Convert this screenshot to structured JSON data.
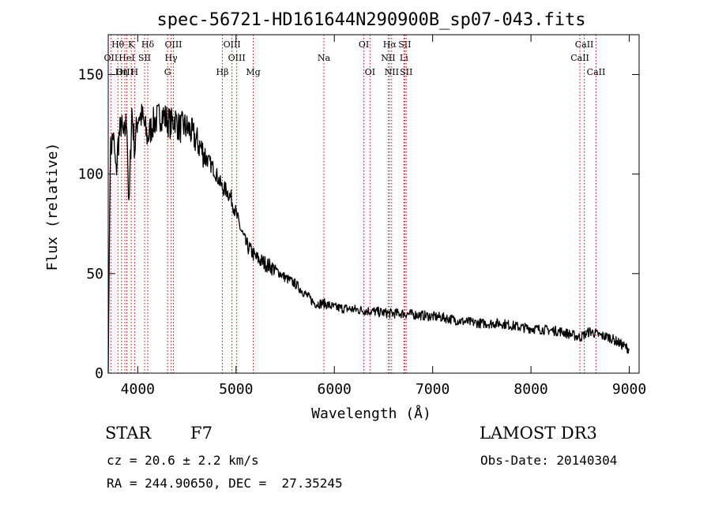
{
  "chart_data": {
    "type": "line",
    "title": "spec-56721-HD161644N290900B_sp07-043.fits",
    "xlabel": "Wavelength (Å)",
    "ylabel": "Flux (relative)",
    "xlim": [
      3700,
      9100
    ],
    "ylim": [
      0,
      170
    ],
    "xticks": [
      4000,
      5000,
      6000,
      7000,
      8000,
      9000
    ],
    "yticks": [
      0,
      50,
      100,
      150
    ],
    "grid": false,
    "series": [
      {
        "name": "flux",
        "x": [
          3700,
          3720,
          3750,
          3780,
          3800,
          3830,
          3860,
          3890,
          3910,
          3940,
          3970,
          3990,
          4010,
          4050,
          4080,
          4100,
          4150,
          4200,
          4250,
          4300,
          4340,
          4380,
          4420,
          4470,
          4530,
          4580,
          4620,
          4700,
          4780,
          4861,
          4900,
          4950,
          5000,
          5050,
          5100,
          5200,
          5300,
          5400,
          5500,
          5600,
          5700,
          5800,
          5900,
          6000,
          6200,
          6400,
          6563,
          6700,
          6900,
          7100,
          7300,
          7500,
          7700,
          7900,
          8100,
          8300,
          8500,
          8600,
          8700,
          8800,
          8900,
          9000
        ],
        "values": [
          0,
          110,
          120,
          100,
          115,
          125,
          118,
          128,
          80,
          132,
          112,
          125,
          130,
          128,
          122,
          118,
          125,
          128,
          130,
          127,
          125,
          128,
          123,
          124,
          122,
          118,
          115,
          108,
          102,
          93,
          92,
          88,
          80,
          72,
          65,
          58,
          55,
          52,
          48,
          45,
          40,
          35,
          35,
          33,
          32,
          31,
          30,
          30,
          29,
          28,
          26,
          25,
          25,
          23,
          22,
          21,
          18,
          21,
          19,
          18,
          15,
          12
        ]
      }
    ],
    "lines": [
      {
        "label": "Hθ",
        "x": 3798,
        "row": 0
      },
      {
        "label": "OII",
        "x": 3727,
        "row": 1
      },
      {
        "label": "OIII",
        "x": 3869,
        "row": 2
      },
      {
        "label": "K",
        "x": 3934,
        "row": 0
      },
      {
        "label": "HeI",
        "x": 3889,
        "row": 1
      },
      {
        "label": "Hη",
        "x": 3835,
        "row": 2
      },
      {
        "label": "SII",
        "x": 4070,
        "row": 1
      },
      {
        "label": "H",
        "x": 3968,
        "row": 2
      },
      {
        "label": "Hδ",
        "x": 4102,
        "row": 0
      },
      {
        "label": "OIII",
        "x": 4363,
        "row": 0
      },
      {
        "label": "Hγ",
        "x": 4340,
        "row": 1
      },
      {
        "label": "G",
        "x": 4304,
        "row": 2
      },
      {
        "label": "Hβ",
        "x": 4861,
        "row": 2
      },
      {
        "label": "OIII",
        "x": 4959,
        "row": 0
      },
      {
        "label": "OIII",
        "x": 5007,
        "row": 1
      },
      {
        "label": "Mg",
        "x": 5175,
        "row": 2
      },
      {
        "label": "Na",
        "x": 5893,
        "row": 1
      },
      {
        "label": "OI",
        "x": 6300,
        "row": 0
      },
      {
        "label": "OI",
        "x": 6363,
        "row": 2
      },
      {
        "label": "Hα",
        "x": 6563,
        "row": 0
      },
      {
        "label": "NII",
        "x": 6548,
        "row": 1
      },
      {
        "label": "NII",
        "x": 6583,
        "row": 2
      },
      {
        "label": "SII",
        "x": 6716,
        "row": 0
      },
      {
        "label": "Li",
        "x": 6708,
        "row": 1
      },
      {
        "label": "SII",
        "x": 6731,
        "row": 2
      },
      {
        "label": "CaII",
        "x": 8542,
        "row": 0
      },
      {
        "label": "CaII",
        "x": 8498,
        "row": 1
      },
      {
        "label": "CaII",
        "x": 8662,
        "row": 2
      }
    ]
  },
  "info": {
    "class_label": "STAR",
    "subclass_label": "F7",
    "survey": "LAMOST DR3",
    "cz": "cz = 20.6 ± 2.2 km/s",
    "obs_date": "Obs-Date: 20140304",
    "coords": "RA = 244.90650, DEC =  27.35245"
  }
}
